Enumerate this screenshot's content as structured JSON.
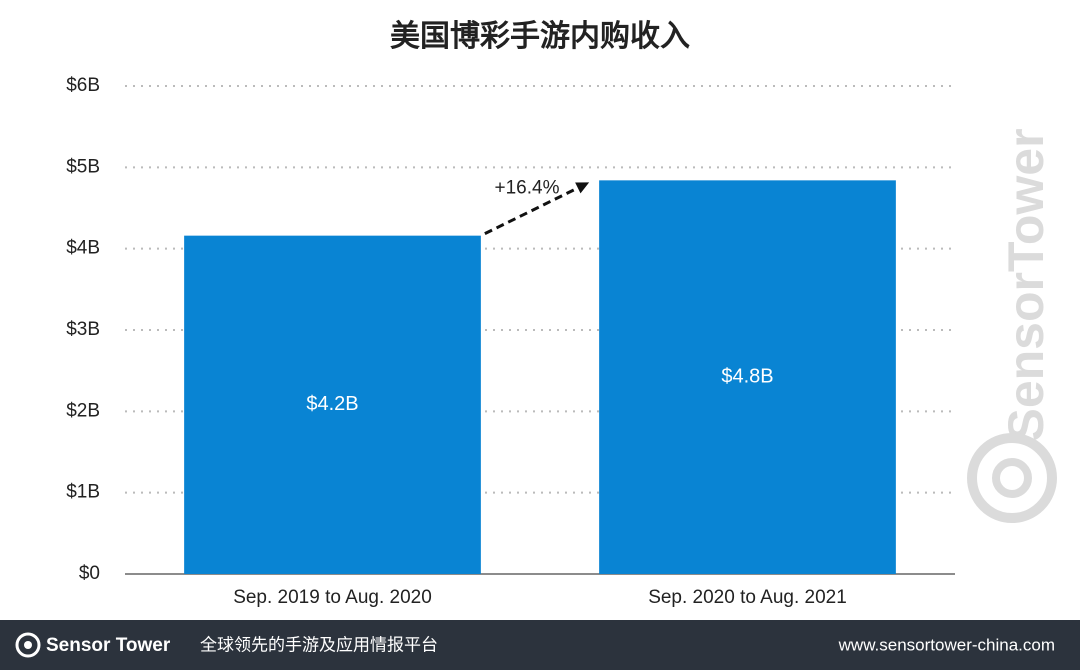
{
  "chart_data": {
    "type": "bar",
    "title": "美国博彩手游内购收入",
    "categories": [
      "Sep. 2019 to Aug. 2020",
      "Sep. 2020 to Aug. 2021"
    ],
    "values": [
      4.16,
      4.84
    ],
    "value_labels": [
      "$4.2B",
      "$4.8B"
    ],
    "color": "#0984d3",
    "ylim": [
      0,
      6
    ],
    "yticks": [
      {
        "value": 0,
        "label": "$0"
      },
      {
        "value": 1,
        "label": "$1B"
      },
      {
        "value": 2,
        "label": "$2B"
      },
      {
        "value": 3,
        "label": "$3B"
      },
      {
        "value": 4,
        "label": "$4B"
      },
      {
        "value": 5,
        "label": "$5B"
      },
      {
        "value": 6,
        "label": "$6B"
      }
    ],
    "grid": true,
    "annotation": "+16.4%"
  },
  "watermark": "SensorTower",
  "footer": {
    "brand": "Sensor Tower",
    "tagline": "全球领先的手游及应用情报平台",
    "url": "www.sensortower-china.com"
  }
}
